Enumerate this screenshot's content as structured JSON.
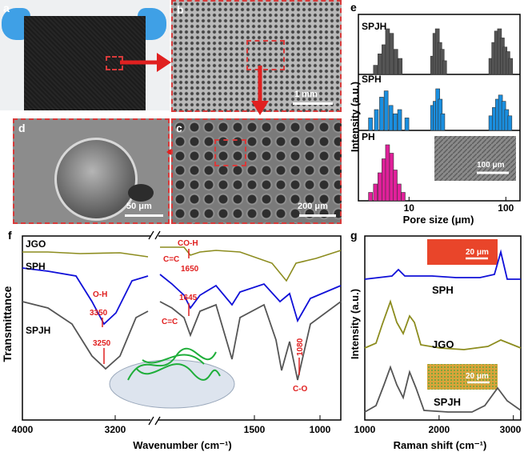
{
  "panels": {
    "a": {
      "letter": "a"
    },
    "b": {
      "letter": "b",
      "scale": "1 mm"
    },
    "c": {
      "letter": "c",
      "scale": "200 μm"
    },
    "d": {
      "letter": "d",
      "scale": "50 μm"
    },
    "e": {
      "letter": "e",
      "ylabel": "Intensity (a.u.)",
      "xlabel": "Pore size (μm)",
      "inset_scale": "100 μm"
    },
    "f": {
      "letter": "f",
      "ylabel": "Transmittance",
      "xlabel": "Wavenumber (cm⁻¹)"
    },
    "g": {
      "letter": "g",
      "ylabel": "Intensity (a.u.)",
      "xlabel": "Raman shift (cm⁻¹)",
      "inset_scale": "20 μm"
    }
  },
  "colors": {
    "sem_border": "#d83a3a",
    "spjh": "#555555",
    "sph": "#1a8fe0",
    "ph": "#e0209a",
    "jgo": "#8c8c1e",
    "sph_line": "#1010d8",
    "arrow": "#e02020"
  },
  "chart_data": [
    {
      "type": "bar",
      "panel": "e",
      "xscale": "log",
      "xlim": [
        3,
        140
      ],
      "xticks": [
        10,
        100
      ],
      "xlabel": "Pore size (μm)",
      "ylabel": "Intensity (a.u.)",
      "series": [
        {
          "name": "SPJH",
          "color": "#555555",
          "x": [
            4.5,
            5.0,
            5.5,
            6.0,
            6.6,
            7.3,
            8.1,
            17.5,
            18.5,
            19.6,
            20.8,
            22.0,
            23.3,
            70,
            75,
            80,
            86,
            92,
            98,
            105,
            112
          ],
          "values": [
            0.2,
            0.45,
            0.65,
            1.0,
            0.9,
            0.55,
            0.35,
            0.4,
            0.9,
            1.0,
            0.7,
            0.55,
            0.3,
            0.35,
            0.7,
            0.95,
            1.0,
            0.8,
            0.6,
            0.5,
            0.35
          ]
        },
        {
          "name": "SPH",
          "color": "#1a8fe0",
          "x": [
            4.0,
            4.6,
            5.2,
            5.8,
            6.5,
            7.2,
            8.0,
            9.5,
            17.5,
            18.6,
            19.8,
            21.0,
            22.3,
            70,
            76,
            82,
            88,
            95,
            102,
            110
          ],
          "values": [
            0.3,
            0.5,
            0.8,
            0.95,
            0.6,
            0.4,
            0.5,
            0.3,
            0.6,
            0.7,
            1.0,
            0.75,
            0.4,
            0.35,
            0.55,
            0.75,
            0.85,
            0.7,
            0.5,
            0.35
          ]
        },
        {
          "name": "PH",
          "color": "#e0209a",
          "x": [
            4.0,
            4.5,
            5.0,
            5.5,
            6.0,
            6.6,
            7.2,
            7.9,
            8.7
          ],
          "values": [
            0.15,
            0.3,
            0.5,
            0.75,
            1.0,
            0.85,
            0.55,
            0.3,
            0.15
          ]
        }
      ]
    },
    {
      "type": "line",
      "panel": "f",
      "xlabel": "Wavenumber (cm⁻¹)",
      "ylabel": "Transmittance",
      "xticks": [
        4000,
        3200,
        1500,
        1000
      ],
      "series": [
        {
          "name": "JGO",
          "color": "#8c8c1e"
        },
        {
          "name": "SPH",
          "color": "#1010d8"
        },
        {
          "name": "SPJH",
          "color": "#555555"
        }
      ],
      "annotations": [
        "CO-H",
        "C=C",
        "1650",
        "O-H",
        "3350",
        "3250",
        "1645",
        "C=C",
        "1080",
        "C-O"
      ]
    },
    {
      "type": "line",
      "panel": "g",
      "xlabel": "Raman shift (cm⁻¹)",
      "ylabel": "Intensity (a.u.)",
      "xlim": [
        1000,
        3100
      ],
      "xticks": [
        1000,
        2000,
        3000
      ],
      "series": [
        {
          "name": "SPH",
          "color": "#1010d8"
        },
        {
          "name": "JGO",
          "color": "#8c8c1e"
        },
        {
          "name": "SPJH",
          "color": "#555555"
        }
      ],
      "inset_scale": "20 μm"
    }
  ]
}
